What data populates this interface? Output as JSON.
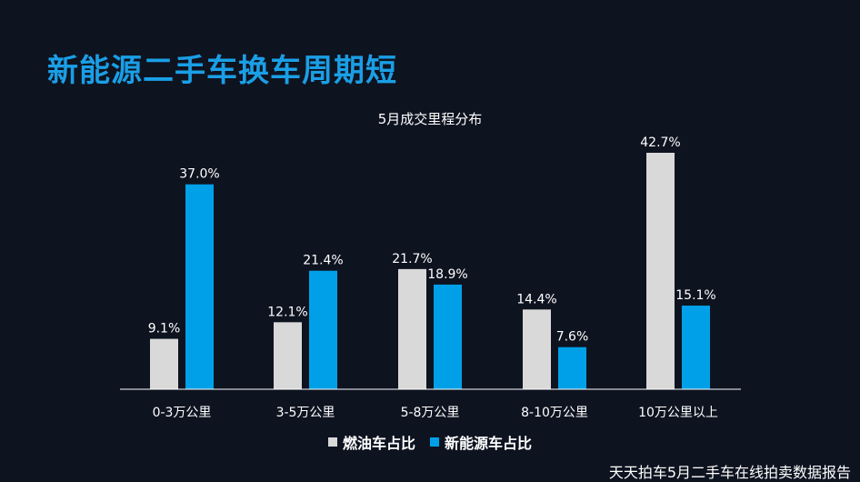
{
  "slide": {
    "title": "新能源二手车换车周期短",
    "footer": "天天拍车5月二手车在线拍卖数据报告"
  },
  "colors": {
    "background": "#0e1320",
    "title": "#1a9fe6",
    "fuel": "#d9d9d9",
    "nev": "#00a0e9",
    "text": "#ffffff"
  },
  "chart_data": {
    "type": "bar",
    "title": "5月成交里程分布",
    "categories": [
      "0-3万公里",
      "3-5万公里",
      "5-8万公里",
      "8-10万公里",
      "10万公里以上"
    ],
    "series": [
      {
        "name": "燃油车占比",
        "values": [
          9.1,
          12.1,
          21.7,
          14.4,
          42.7
        ],
        "labels": [
          "9.1%",
          "12.1%",
          "21.7%",
          "14.4%",
          "42.7%"
        ]
      },
      {
        "name": "新能源车占比",
        "values": [
          37.0,
          21.4,
          18.9,
          7.6,
          15.1
        ],
        "labels": [
          "37.0%",
          "21.4%",
          "18.9%",
          "7.6%",
          "15.1%"
        ]
      }
    ],
    "ylim": [
      0,
      50
    ],
    "grid": false,
    "legend_position": "bottom"
  }
}
